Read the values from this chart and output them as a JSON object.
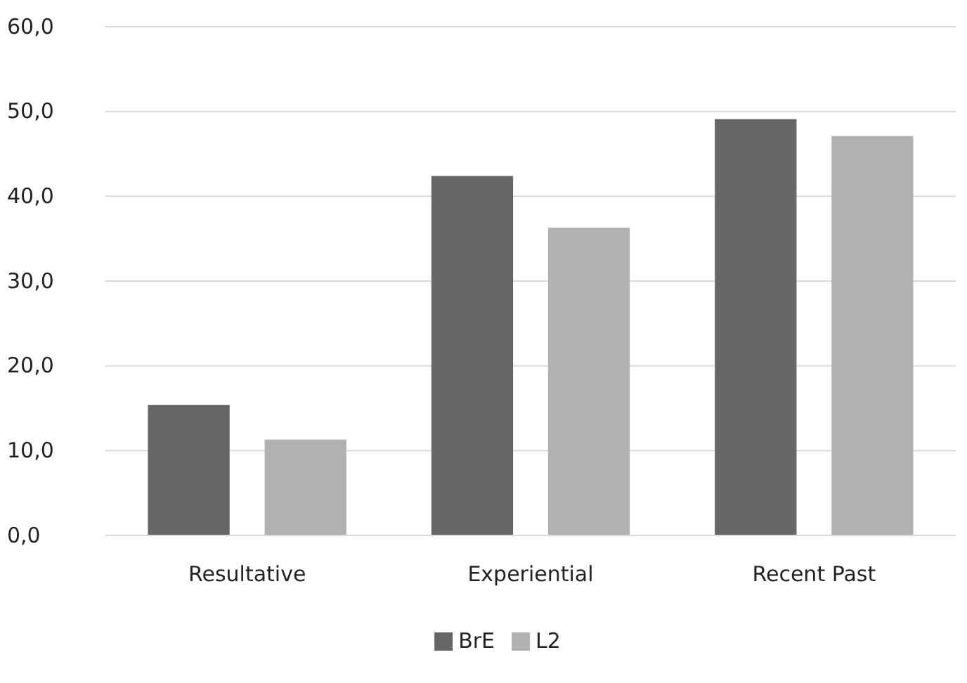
{
  "chart_data": {
    "type": "bar",
    "categories": [
      "Resultative",
      "Experiential",
      "Recent Past"
    ],
    "series": [
      {
        "name": "BrE",
        "color": "#666666",
        "values": [
          15.4,
          42.4,
          49.1
        ]
      },
      {
        "name": "L2",
        "color": "#b1b1b3",
        "values": [
          11.3,
          36.3,
          47.1
        ]
      }
    ],
    "ylim": [
      0,
      60
    ],
    "yticks": [
      {
        "value": 0,
        "label": "0,0"
      },
      {
        "value": 10,
        "label": "10,0"
      },
      {
        "value": 20,
        "label": "20,0"
      },
      {
        "value": 30,
        "label": "30,0"
      },
      {
        "value": 40,
        "label": "40,0"
      },
      {
        "value": 50,
        "label": "50,0"
      },
      {
        "value": 60,
        "label": "60,0"
      }
    ],
    "grid": "y",
    "legend": "bottom"
  }
}
